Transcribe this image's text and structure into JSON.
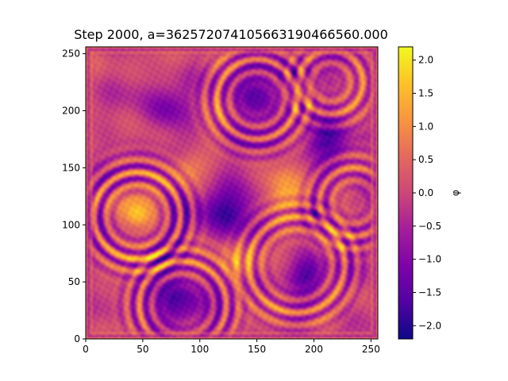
{
  "chart_data": {
    "type": "heatmap",
    "title": "Step 2000, a=3625720741056631904665​60.000",
    "xlabel": "",
    "ylabel": "",
    "xlim": [
      0,
      256
    ],
    "ylim": [
      0,
      256
    ],
    "x_ticks": [
      0,
      50,
      100,
      150,
      200,
      250
    ],
    "y_ticks": [
      0,
      50,
      100,
      150,
      200,
      250
    ],
    "grid": false,
    "colormap": "plasma",
    "colorbar": {
      "label": "φ",
      "range": [
        -2.2,
        2.2
      ],
      "ticks": [
        "2.0",
        "1.5",
        "1.0",
        "0.5",
        "0.0",
        "−0.5",
        "−1.0",
        "−1.5",
        "−2.0"
      ],
      "tick_values": [
        2.0,
        1.5,
        1.0,
        0.5,
        0.0,
        -0.5,
        -1.0,
        -1.5,
        -2.0
      ]
    },
    "features": [
      {
        "kind": "ring",
        "cx": 45,
        "cy": 108,
        "r": 38,
        "value": 1.4
      },
      {
        "kind": "ring",
        "cx": 85,
        "cy": 30,
        "r": 38,
        "value": 1.2
      },
      {
        "kind": "ring",
        "cx": 150,
        "cy": 210,
        "r": 35,
        "value": 1.2
      },
      {
        "kind": "ring",
        "cx": 185,
        "cy": 65,
        "r": 42,
        "value": 1.1
      },
      {
        "kind": "ring",
        "cx": 215,
        "cy": 225,
        "r": 28,
        "value": 1.0
      },
      {
        "kind": "ring",
        "cx": 235,
        "cy": 120,
        "r": 30,
        "value": 1.0
      },
      {
        "kind": "blob",
        "cx": 120,
        "cy": 115,
        "r": 28,
        "value": -1.6
      },
      {
        "kind": "blob",
        "cx": 85,
        "cy": 30,
        "r": 26,
        "value": -1.5
      },
      {
        "kind": "blob",
        "cx": 150,
        "cy": 210,
        "r": 22,
        "value": -1.4
      },
      {
        "kind": "blob",
        "cx": 215,
        "cy": 170,
        "r": 20,
        "value": -1.5
      },
      {
        "kind": "blob",
        "cx": 195,
        "cy": 55,
        "r": 18,
        "value": -1.3
      },
      {
        "kind": "blob",
        "cx": 70,
        "cy": 200,
        "r": 20,
        "value": -1.3
      },
      {
        "kind": "blob",
        "cx": 45,
        "cy": 110,
        "r": 16,
        "value": 1.5
      },
      {
        "kind": "blob",
        "cx": 130,
        "cy": 65,
        "r": 18,
        "value": 1.3
      },
      {
        "kind": "blob",
        "cx": 175,
        "cy": 125,
        "r": 20,
        "value": 1.2
      },
      {
        "kind": "blob",
        "cx": 90,
        "cy": 150,
        "r": 16,
        "value": 1.2
      }
    ]
  }
}
